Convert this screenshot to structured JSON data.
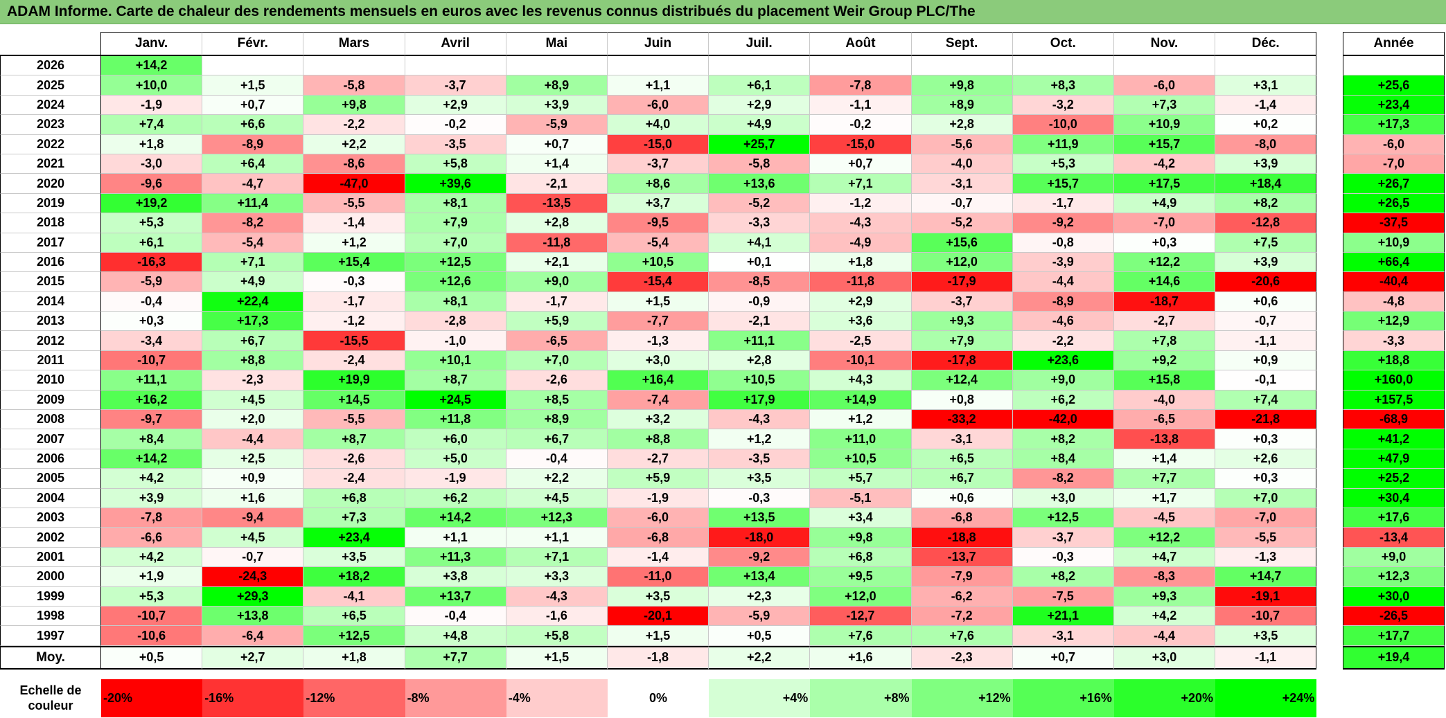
{
  "colors": {
    "title_bar": "#8bcb7b"
  },
  "chart_data": {
    "type": "heatmap",
    "title": "ADAM Informe. Carte de chaleur des rendements mensuels en euros avec les revenus connus distribués du placement Weir Group PLC/The",
    "columns": [
      "Janv.",
      "Févr.",
      "Mars",
      "Avril",
      "Mai",
      "Juin",
      "Juil.",
      "Août",
      "Sept.",
      "Oct.",
      "Nov.",
      "Déc."
    ],
    "annual_label": "Année",
    "rows": [
      {
        "year": "2026",
        "months": [
          "+14,2",
          null,
          null,
          null,
          null,
          null,
          null,
          null,
          null,
          null,
          null,
          null
        ],
        "annual": null
      },
      {
        "year": "2025",
        "months": [
          "+10,0",
          "+1,5",
          "-5,8",
          "-3,7",
          "+8,9",
          "+1,1",
          "+6,1",
          "-7,8",
          "+9,8",
          "+8,3",
          "-6,0",
          "+3,1"
        ],
        "annual": "+25,6"
      },
      {
        "year": "2024",
        "months": [
          "-1,9",
          "+0,7",
          "+9,8",
          "+2,9",
          "+3,9",
          "-6,0",
          "+2,9",
          "-1,1",
          "+8,9",
          "-3,2",
          "+7,3",
          "-1,4"
        ],
        "annual": "+23,4"
      },
      {
        "year": "2023",
        "months": [
          "+7,4",
          "+6,6",
          "-2,2",
          "-0,2",
          "-5,9",
          "+4,0",
          "+4,9",
          "-0,2",
          "+2,8",
          "-10,0",
          "+10,9",
          "+0,2"
        ],
        "annual": "+17,3"
      },
      {
        "year": "2022",
        "months": [
          "+1,8",
          "-8,9",
          "+2,2",
          "-3,5",
          "+0,7",
          "-15,0",
          "+25,7",
          "-15,0",
          "-5,6",
          "+11,9",
          "+15,7",
          "-8,0"
        ],
        "annual": "-6,0"
      },
      {
        "year": "2021",
        "months": [
          "-3,0",
          "+6,4",
          "-8,6",
          "+5,8",
          "+1,4",
          "-3,7",
          "-5,8",
          "+0,7",
          "-4,0",
          "+5,3",
          "-4,2",
          "+3,9"
        ],
        "annual": "-7,0"
      },
      {
        "year": "2020",
        "months": [
          "-9,6",
          "-4,7",
          "-47,0",
          "+39,6",
          "-2,1",
          "+8,6",
          "+13,6",
          "+7,1",
          "-3,1",
          "+15,7",
          "+17,5",
          "+18,4"
        ],
        "annual": "+26,7"
      },
      {
        "year": "2019",
        "months": [
          "+19,2",
          "+11,4",
          "-5,5",
          "+8,1",
          "-13,5",
          "+3,7",
          "-5,2",
          "-1,2",
          "-0,7",
          "-1,7",
          "+4,9",
          "+8,2"
        ],
        "annual": "+26,5"
      },
      {
        "year": "2018",
        "months": [
          "+5,3",
          "-8,2",
          "-1,4",
          "+7,9",
          "+2,8",
          "-9,5",
          "-3,3",
          "-4,3",
          "-5,2",
          "-9,2",
          "-7,0",
          "-12,8"
        ],
        "annual": "-37,5"
      },
      {
        "year": "2017",
        "months": [
          "+6,1",
          "-5,4",
          "+1,2",
          "+7,0",
          "-11,8",
          "-5,4",
          "+4,1",
          "-4,9",
          "+15,6",
          "-0,8",
          "+0,3",
          "+7,5"
        ],
        "annual": "+10,9"
      },
      {
        "year": "2016",
        "months": [
          "-16,3",
          "+7,1",
          "+15,4",
          "+12,5",
          "+2,1",
          "+10,5",
          "+0,1",
          "+1,8",
          "+12,0",
          "-3,9",
          "+12,2",
          "+3,9"
        ],
        "annual": "+66,4"
      },
      {
        "year": "2015",
        "months": [
          "-5,9",
          "+4,9",
          "-0,3",
          "+12,6",
          "+9,0",
          "-15,4",
          "-8,5",
          "-11,8",
          "-17,9",
          "-4,4",
          "+14,6",
          "-20,6"
        ],
        "annual": "-40,4"
      },
      {
        "year": "2014",
        "months": [
          "-0,4",
          "+22,4",
          "-1,7",
          "+8,1",
          "-1,7",
          "+1,5",
          "-0,9",
          "+2,9",
          "-3,7",
          "-8,9",
          "-18,7",
          "+0,6"
        ],
        "annual": "-4,8"
      },
      {
        "year": "2013",
        "months": [
          "+0,3",
          "+17,3",
          "-1,2",
          "-2,8",
          "+5,9",
          "-7,7",
          "-2,1",
          "+3,6",
          "+9,3",
          "-4,6",
          "-2,7",
          "-0,7"
        ],
        "annual": "+12,9"
      },
      {
        "year": "2012",
        "months": [
          "-3,4",
          "+6,7",
          "-15,5",
          "-1,0",
          "-6,5",
          "-1,3",
          "+11,1",
          "-2,5",
          "+7,9",
          "-2,2",
          "+7,8",
          "-1,1"
        ],
        "annual": "-3,3"
      },
      {
        "year": "2011",
        "months": [
          "-10,7",
          "+8,8",
          "-2,4",
          "+10,1",
          "+7,0",
          "+3,0",
          "+2,8",
          "-10,1",
          "-17,8",
          "+23,6",
          "+9,2",
          "+0,9"
        ],
        "annual": "+18,8"
      },
      {
        "year": "2010",
        "months": [
          "+11,1",
          "-2,3",
          "+19,9",
          "+8,7",
          "-2,6",
          "+16,4",
          "+10,5",
          "+4,3",
          "+12,4",
          "+9,0",
          "+15,8",
          "-0,1"
        ],
        "annual": "+160,0"
      },
      {
        "year": "2009",
        "months": [
          "+16,2",
          "+4,5",
          "+14,5",
          "+24,5",
          "+8,5",
          "-7,4",
          "+17,9",
          "+14,9",
          "+0,8",
          "+6,2",
          "-4,0",
          "+7,4"
        ],
        "annual": "+157,5"
      },
      {
        "year": "2008",
        "months": [
          "-9,7",
          "+2,0",
          "-5,5",
          "+11,8",
          "+8,9",
          "+3,2",
          "-4,3",
          "+1,2",
          "-33,2",
          "-42,0",
          "-6,5",
          "-21,8"
        ],
        "annual": "-68,9"
      },
      {
        "year": "2007",
        "months": [
          "+8,4",
          "-4,4",
          "+8,7",
          "+6,0",
          "+6,7",
          "+8,8",
          "+1,2",
          "+11,0",
          "-3,1",
          "+8,2",
          "-13,8",
          "+0,3"
        ],
        "annual": "+41,2"
      },
      {
        "year": "2006",
        "months": [
          "+14,2",
          "+2,5",
          "-2,6",
          "+5,0",
          "-0,4",
          "-2,7",
          "-3,5",
          "+10,5",
          "+6,5",
          "+8,4",
          "+1,4",
          "+2,6"
        ],
        "annual": "+47,9"
      },
      {
        "year": "2005",
        "months": [
          "+4,2",
          "+0,9",
          "-2,4",
          "-1,9",
          "+2,2",
          "+5,9",
          "+3,5",
          "+5,7",
          "+6,7",
          "-8,2",
          "+7,7",
          "+0,3"
        ],
        "annual": "+25,2"
      },
      {
        "year": "2004",
        "months": [
          "+3,9",
          "+1,6",
          "+6,8",
          "+6,2",
          "+4,5",
          "-1,9",
          "-0,3",
          "-5,1",
          "+0,6",
          "+3,0",
          "+1,7",
          "+7,0"
        ],
        "annual": "+30,4"
      },
      {
        "year": "2003",
        "months": [
          "-7,8",
          "-9,4",
          "+7,3",
          "+14,2",
          "+12,3",
          "-6,0",
          "+13,5",
          "+3,4",
          "-6,8",
          "+12,5",
          "-4,5",
          "-7,0"
        ],
        "annual": "+17,6"
      },
      {
        "year": "2002",
        "months": [
          "-6,6",
          "+4,5",
          "+23,4",
          "+1,1",
          "+1,1",
          "-6,8",
          "-18,0",
          "+9,8",
          "-18,8",
          "-3,7",
          "+12,2",
          "-5,5"
        ],
        "annual": "-13,4"
      },
      {
        "year": "2001",
        "months": [
          "+4,2",
          "-0,7",
          "+3,5",
          "+11,3",
          "+7,1",
          "-1,4",
          "-9,2",
          "+6,8",
          "-13,7",
          "-0,3",
          "+4,7",
          "-1,3"
        ],
        "annual": "+9,0"
      },
      {
        "year": "2000",
        "months": [
          "+1,9",
          "-24,3",
          "+18,2",
          "+3,8",
          "+3,3",
          "-11,0",
          "+13,4",
          "+9,5",
          "-7,9",
          "+8,2",
          "-8,3",
          "+14,7"
        ],
        "annual": "+12,3"
      },
      {
        "year": "1999",
        "months": [
          "+5,3",
          "+29,3",
          "-4,1",
          "+13,7",
          "-4,3",
          "+3,5",
          "+2,3",
          "+12,0",
          "-6,2",
          "-7,5",
          "+9,3",
          "-19,1"
        ],
        "annual": "+30,0"
      },
      {
        "year": "1998",
        "months": [
          "-10,7",
          "+13,8",
          "+6,5",
          "-0,4",
          "-1,6",
          "-20,1",
          "-5,9",
          "-12,7",
          "-7,2",
          "+21,1",
          "+4,2",
          "-10,7"
        ],
        "annual": "-26,5"
      },
      {
        "year": "1997",
        "months": [
          "-10,6",
          "-6,4",
          "+12,5",
          "+4,8",
          "+5,8",
          "+1,5",
          "+0,5",
          "+7,6",
          "+7,6",
          "-3,1",
          "-4,4",
          "+3,5"
        ],
        "annual": "+17,7"
      }
    ],
    "average": {
      "label": "Moy.",
      "months": [
        "+0,5",
        "+2,7",
        "+1,8",
        "+7,7",
        "+1,5",
        "-1,8",
        "+2,2",
        "+1,6",
        "-2,3",
        "+0,7",
        "+3,0",
        "-1,1"
      ],
      "annual": "+19,4"
    },
    "scale": {
      "label": "Echelle de couleur",
      "steps": [
        {
          "label": "-20%",
          "color": "#ff0000"
        },
        {
          "label": "-16%",
          "color": "#ff3333"
        },
        {
          "label": "-12%",
          "color": "#ff6666"
        },
        {
          "label": "-8%",
          "color": "#ff9999"
        },
        {
          "label": "-4%",
          "color": "#ffcccc"
        },
        {
          "label": "0%",
          "color": "#ffffff"
        },
        {
          "label": "+4%",
          "color": "#d5ffd5"
        },
        {
          "label": "+8%",
          "color": "#aaffaa"
        },
        {
          "label": "+12%",
          "color": "#80ff80"
        },
        {
          "label": "+16%",
          "color": "#55ff55"
        },
        {
          "label": "+20%",
          "color": "#2bff2b"
        },
        {
          "label": "+24%",
          "color": "#00ff00"
        }
      ]
    }
  }
}
